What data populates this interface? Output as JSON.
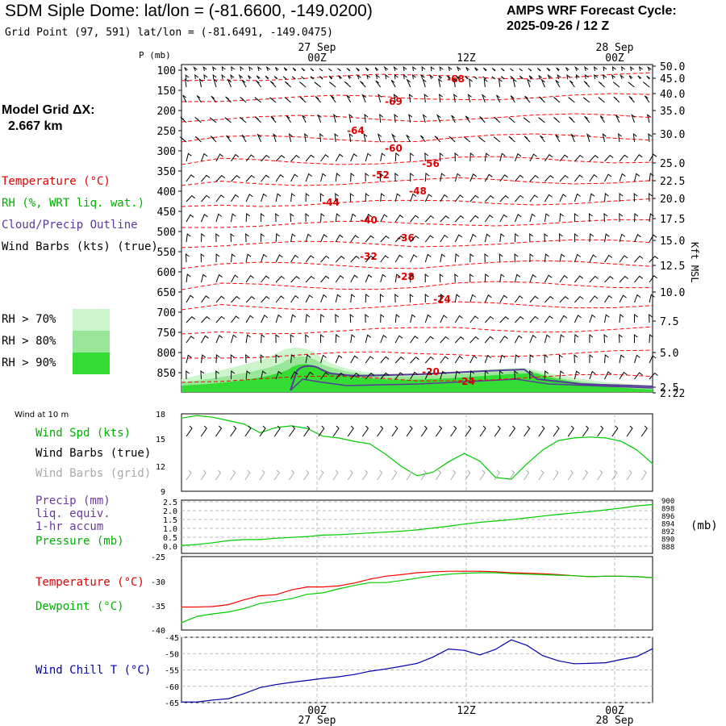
{
  "header": {
    "title": "SDM Siple Dome:  lat/lon = (-81.6600, -149.0200)",
    "subtitle": "Grid Point (97, 591) lat/lon = (-81.6491, -149.0475)",
    "cycle_line1": "AMPS WRF Forecast Cycle:",
    "cycle_line2": "2025-09-26 / 12  Z"
  },
  "left_legend": {
    "model_grid_line1": "Model Grid ΔX:",
    "model_grid_line2": "2.667 km",
    "temperature": "Temperature (°C)",
    "rh": "RH (%, WRT liq. wat.)",
    "cloud": "Cloud/Precip Outline",
    "wind": "Wind Barbs (kts) (true)",
    "rh70": "RH > 70%",
    "rh80": "RH > 80%",
    "rh90": "RH > 90%",
    "wind10m": "Wind at 10 m",
    "wind_spd": "Wind Spd (kts)",
    "wind_true": "Wind Barbs (true)",
    "wind_grid": "Wind Barbs (grid)",
    "precip1": "Precip (mm)",
    "precip2": "liq. equiv.",
    "precip3": "1-hr accum",
    "pressure": "Pressure (mb)",
    "temp2": "Temperature (°C)",
    "dew": "Dewpoint (°C)",
    "chill": "Wind Chill T (°C)",
    "mb": "(mb)",
    "kft": "Kft MSL",
    "p_unit": "P (mb)"
  },
  "colors": {
    "temperature": "#ff0000",
    "rh_line": "#00cc00",
    "cloud": "#5a3a9a",
    "rh70": "#ccf5cc",
    "rh80": "#99e699",
    "rh90": "#33dd33",
    "wind_grid": "#aaaaaa",
    "chill": "#0000aa"
  },
  "time_axis": {
    "top_dates": [
      "27 Sep",
      "28 Sep"
    ],
    "ticks": [
      "00Z",
      "12Z",
      "00Z"
    ],
    "bottom_dates": [
      "27 Sep",
      "28 Sep"
    ]
  },
  "chart_data": [
    {
      "type": "heatmap",
      "name": "cross-section",
      "y_left_label": "P (mb)",
      "pressure_levels": [
        "100",
        "150",
        "200",
        "250",
        "300",
        "350",
        "400",
        "450",
        "500",
        "550",
        "600",
        "650",
        "700",
        "750",
        "800",
        "850"
      ],
      "height_ticks": [
        "50.0",
        "45.0",
        "40.0",
        "35.0",
        "30.0",
        "25.0",
        "22.5",
        "20.0",
        "17.5",
        "15.0",
        "12.5",
        "10.0",
        "7.5",
        "5.0",
        "2.5",
        "2.22"
      ],
      "isotherm_labels": [
        "-68",
        "-69",
        "-64",
        "-60",
        "-56",
        "-52",
        "-48",
        "-44",
        "-40",
        "-36",
        "-32",
        "-28",
        "-24",
        "-20",
        "-24"
      ],
      "rh_legend": [
        "RH > 70%",
        "RH > 80%",
        "RH > 90%"
      ]
    },
    {
      "type": "line",
      "name": "wind-10m",
      "y_ticks": [
        "18",
        "15",
        "12",
        "9"
      ],
      "ylim": [
        9,
        18
      ],
      "wind_speed_kts": [
        17.5,
        17.8,
        17.6,
        17.2,
        16.8,
        15.8,
        16.4,
        16.6,
        16.3,
        15.4,
        15.2,
        14.8,
        14.5,
        13.3,
        11.9,
        10.8,
        11.2,
        12.4,
        13.4,
        12.5,
        10.6,
        10.4,
        12.2,
        13.8,
        14.9,
        15.2,
        15.3,
        15.2,
        14.8,
        13.8,
        12.2
      ]
    },
    {
      "type": "line",
      "name": "precip-pressure",
      "y_ticks_precip": [
        "2.5",
        "2.0",
        "1.5",
        "1.0",
        "0.5",
        "0.0"
      ],
      "y_ticks_pressure": [
        "900",
        "898",
        "896",
        "894",
        "892",
        "890",
        "888"
      ],
      "pressure_mb": [
        889.8,
        890.0,
        890.4,
        890.9,
        891.1,
        891.1,
        891.4,
        891.6,
        891.8,
        892.1,
        892.2,
        892.4,
        892.6,
        892.8,
        893.0,
        893.3,
        893.7,
        894.1,
        894.6,
        895.0,
        895.3,
        895.6,
        896.0,
        896.4,
        896.8,
        897.1,
        897.4,
        897.8,
        898.2,
        898.7,
        899.0
      ],
      "precip_mm": [
        0,
        0,
        0,
        0,
        0,
        0,
        0,
        0,
        0,
        0,
        0,
        0,
        0,
        0,
        0,
        0,
        0,
        0,
        0,
        0,
        0,
        0,
        0,
        0,
        0,
        0,
        0,
        0,
        0,
        0,
        0
      ]
    },
    {
      "type": "line",
      "name": "temp-dewpoint",
      "y_ticks": [
        "-25",
        "-30",
        "-35",
        "-40"
      ],
      "ylim": [
        -40,
        -25
      ],
      "temperature_c": [
        -35.3,
        -35.3,
        -35.2,
        -34.8,
        -33.8,
        -33.0,
        -32.8,
        -31.8,
        -31.2,
        -31.2,
        -31.0,
        -30.4,
        -29.6,
        -29.0,
        -28.7,
        -28.3,
        -28.1,
        -28.0,
        -28.0,
        -28.0,
        -28.1,
        -28.3,
        -28.4,
        -28.5,
        -28.7,
        -28.9,
        -29.1,
        -29.0,
        -29.0,
        -29.1,
        -29.3
      ],
      "dewpoint_c": [
        -38.5,
        -37.2,
        -36.7,
        -36.3,
        -35.6,
        -34.6,
        -34.1,
        -33.6,
        -32.7,
        -32.4,
        -31.6,
        -30.9,
        -30.3,
        -30.3,
        -29.9,
        -29.4,
        -28.9,
        -28.6,
        -28.4,
        -28.3,
        -28.3,
        -28.5,
        -28.6,
        -28.7,
        -28.8,
        -28.9,
        -29.1,
        -29.0,
        -29.0,
        -29.1,
        -29.3
      ]
    },
    {
      "type": "line",
      "name": "wind-chill",
      "y_ticks": [
        "-45",
        "-50",
        "-55",
        "-60",
        "-65"
      ],
      "ylim": [
        -65,
        -45
      ],
      "wind_chill_c": [
        -64.8,
        -64.8,
        -64.2,
        -63.8,
        -62.2,
        -60.4,
        -59.5,
        -58.8,
        -58.2,
        -57.6,
        -57.1,
        -56.4,
        -55.4,
        -54.7,
        -53.9,
        -53.0,
        -51.1,
        -48.6,
        -49.0,
        -50.4,
        -48.7,
        -45.8,
        -47.5,
        -50.6,
        -52.2,
        -53.1,
        -53.0,
        -52.8,
        -51.8,
        -50.9,
        -48.5
      ]
    }
  ]
}
